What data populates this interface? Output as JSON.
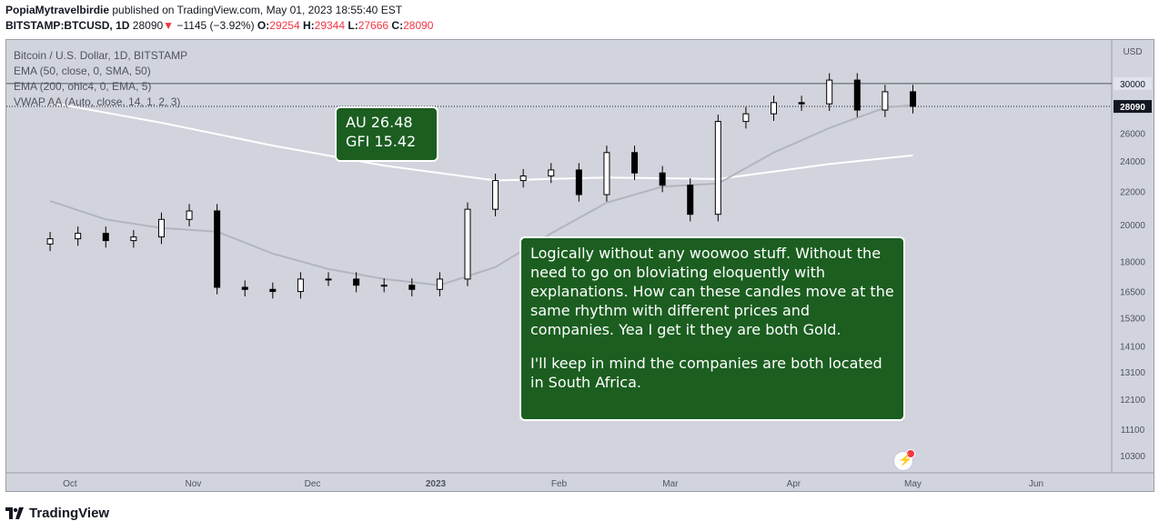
{
  "header": {
    "publisher": "PopiaMytravelbirdie",
    "published_text": " published on TradingView.com, May 01, 2023 18:55:40 EST",
    "symbol": "BITSTAMP:BTCUSD, 1D",
    "last": "28090",
    "change": "−1145 (−3.92%)",
    "open_label": "O:",
    "open": "29254",
    "high_label": "H:",
    "high": "29344",
    "low_label": "L:",
    "low": "27666",
    "close_label": "C:",
    "close": "28090"
  },
  "legend": {
    "title": "Bitcoin / U.S. Dollar, 1D, BITSTAMP",
    "ind1": "EMA (50, close, 0, SMA, 50)",
    "ind2": "EMA (200, ohlc4, 0, EMA, 5)",
    "ind3": "VWAP AA (Auto, close, 14, 1, 2, 3)"
  },
  "note1": {
    "line1": "AU 26.48",
    "line2": "GFI 15.42"
  },
  "note2": {
    "p1": "Logically without any woowoo stuff. Without the need to go on bloviating eloquently with explanations. How can these candles move at the same rhythm with different prices and companies. Yea I get it they are both Gold.",
    "p2": "I'll keep in mind the companies are both located in South Africa."
  },
  "footer": {
    "brand": "TradingView"
  },
  "colors": {
    "up": "#ffffff",
    "down": "#000000",
    "ema50": "#b2b5be",
    "ema200": "#ffffff",
    "background": "#d1d4dc",
    "note": "#1b5e20"
  },
  "chart_data": {
    "type": "candlestick",
    "x_axis": [
      "Oct",
      "Nov",
      "Dec",
      "2023",
      "Feb",
      "Mar",
      "Apr",
      "May",
      "Jun"
    ],
    "y_axis_unit": "USD",
    "y_ticks": [
      30000,
      26000,
      24000,
      22000,
      20000,
      18000,
      16500,
      15300,
      14100,
      13100,
      12100,
      11100,
      10300
    ],
    "y_scale": "log",
    "ylim": [
      9900,
      34000
    ],
    "current_price": 28090,
    "reference_line": 30000,
    "series_close": [
      [
        "2022-09-26",
        19200
      ],
      [
        "2022-10-03",
        19500
      ],
      [
        "2022-10-10",
        19100
      ],
      [
        "2022-10-17",
        19300
      ],
      [
        "2022-10-24",
        20300
      ],
      [
        "2022-10-31",
        20800
      ],
      [
        "2022-11-07",
        16700
      ],
      [
        "2022-11-14",
        16600
      ],
      [
        "2022-11-21",
        16500
      ],
      [
        "2022-11-28",
        17100
      ],
      [
        "2022-12-05",
        17100
      ],
      [
        "2022-12-12",
        16800
      ],
      [
        "2022-12-19",
        16800
      ],
      [
        "2022-12-26",
        16600
      ],
      [
        "2023-01-02",
        17100
      ],
      [
        "2023-01-09",
        20900
      ],
      [
        "2023-01-16",
        22700
      ],
      [
        "2023-01-23",
        23000
      ],
      [
        "2023-01-30",
        23400
      ],
      [
        "2023-02-06",
        21800
      ],
      [
        "2023-02-13",
        24600
      ],
      [
        "2023-02-20",
        23200
      ],
      [
        "2023-02-27",
        22400
      ],
      [
        "2023-03-06",
        20600
      ],
      [
        "2023-03-13",
        26900
      ],
      [
        "2023-03-20",
        27500
      ],
      [
        "2023-03-27",
        28400
      ],
      [
        "2023-04-03",
        28300
      ],
      [
        "2023-04-10",
        30300
      ],
      [
        "2023-04-17",
        27800
      ],
      [
        "2023-04-24",
        29300
      ],
      [
        "2023-05-01",
        28090
      ]
    ],
    "ema50": [
      [
        "2022-09-26",
        21400
      ],
      [
        "2022-10-10",
        20300
      ],
      [
        "2022-10-24",
        19800
      ],
      [
        "2022-11-07",
        19600
      ],
      [
        "2022-11-21",
        18400
      ],
      [
        "2022-12-05",
        17600
      ],
      [
        "2022-12-19",
        17100
      ],
      [
        "2023-01-02",
        16800
      ],
      [
        "2023-01-16",
        17700
      ],
      [
        "2023-01-30",
        19500
      ],
      [
        "2023-02-13",
        21300
      ],
      [
        "2023-02-27",
        22300
      ],
      [
        "2023-03-13",
        22500
      ],
      [
        "2023-03-27",
        24600
      ],
      [
        "2023-04-10",
        26400
      ],
      [
        "2023-04-24",
        28000
      ],
      [
        "2023-05-01",
        28200
      ]
    ],
    "ema200": [
      [
        "2022-09-26",
        28400
      ],
      [
        "2022-10-24",
        26800
      ],
      [
        "2022-11-21",
        25100
      ],
      [
        "2022-12-19",
        23700
      ],
      [
        "2023-01-16",
        22700
      ],
      [
        "2023-02-13",
        22900
      ],
      [
        "2023-03-13",
        22800
      ],
      [
        "2023-04-10",
        23800
      ],
      [
        "2023-05-01",
        24400
      ]
    ]
  }
}
